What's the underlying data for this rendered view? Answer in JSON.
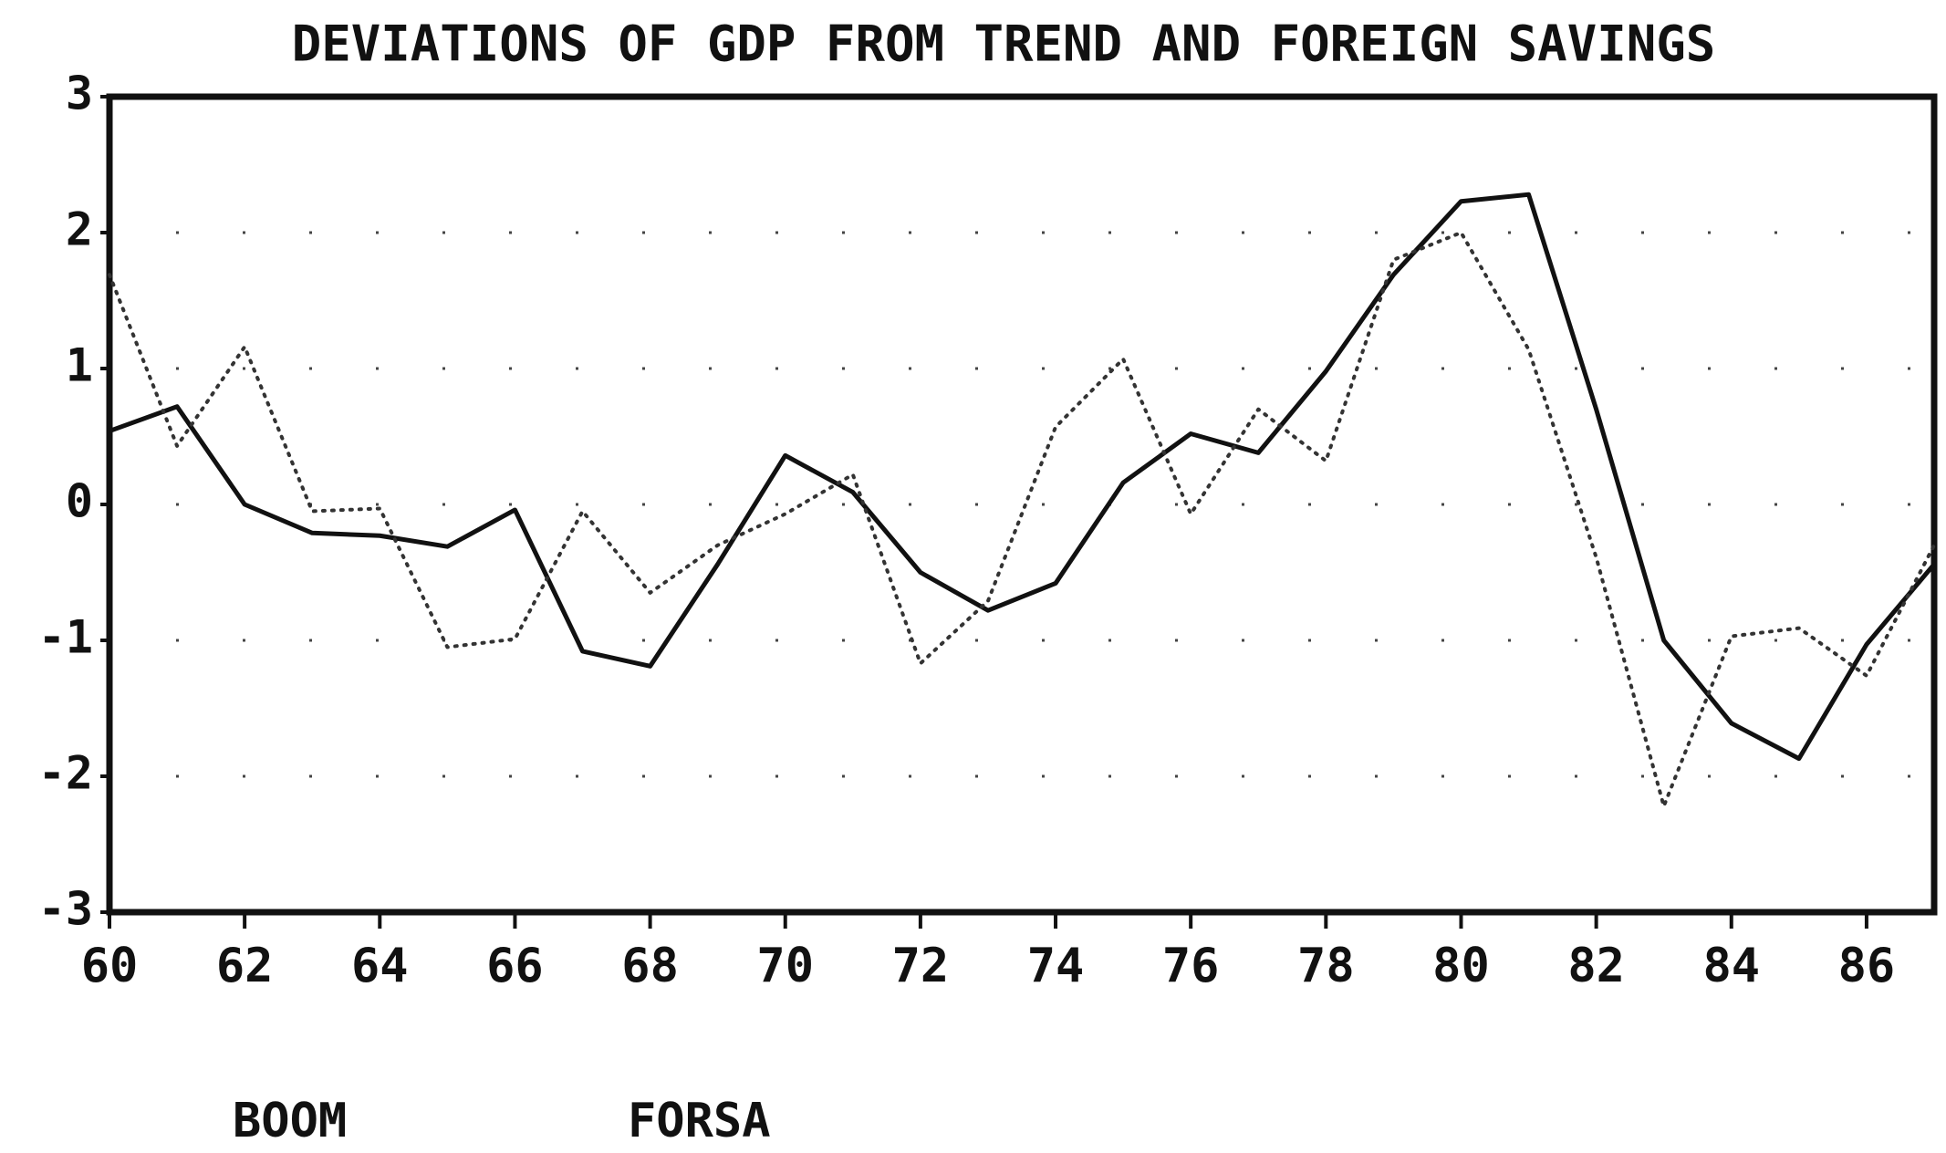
{
  "chart_data": {
    "type": "line",
    "title": "DEVIATIONS OF GDP FROM TREND AND FOREIGN SAVINGS",
    "x": [
      60,
      61,
      62,
      63,
      64,
      65,
      66,
      67,
      68,
      69,
      70,
      71,
      72,
      73,
      74,
      75,
      76,
      77,
      78,
      79,
      80,
      81,
      82,
      83,
      84,
      85,
      86,
      87
    ],
    "series": [
      {
        "name": "BOOM",
        "color": "#111111",
        "style": "solid",
        "values": [
          0.54,
          0.72,
          0.0,
          -0.21,
          -0.23,
          -0.31,
          -0.04,
          -1.08,
          -1.19,
          -0.44,
          0.36,
          0.09,
          -0.5,
          -0.78,
          -0.58,
          0.16,
          0.52,
          0.38,
          0.98,
          1.69,
          2.23,
          2.28,
          0.7,
          -1.0,
          -1.61,
          -1.87,
          -1.03,
          -0.44
        ]
      },
      {
        "name": "FORSA",
        "color": "#333333",
        "style": "dotted",
        "values": [
          1.69,
          0.43,
          1.16,
          -0.05,
          -0.03,
          -1.05,
          -0.99,
          -0.05,
          -0.65,
          -0.3,
          -0.07,
          0.22,
          -1.17,
          -0.71,
          0.57,
          1.07,
          -0.07,
          0.7,
          0.32,
          1.8,
          2.0,
          1.14,
          -0.39,
          -2.22,
          -0.97,
          -0.91,
          -1.26,
          -0.3
        ]
      }
    ],
    "xlim": [
      60,
      87
    ],
    "ylim": [
      -3,
      3
    ],
    "xticks": [
      60,
      62,
      64,
      66,
      68,
      70,
      72,
      74,
      76,
      78,
      80,
      82,
      84,
      86
    ],
    "yticks": [
      -3,
      -2,
      -1,
      0,
      1,
      2,
      3
    ],
    "grid": true
  }
}
